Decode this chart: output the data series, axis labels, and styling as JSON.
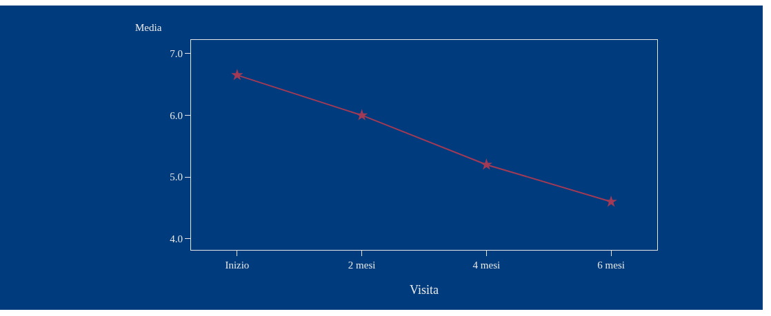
{
  "chart_data": {
    "type": "line",
    "xlabel": "Visita",
    "ylabel": "Media",
    "categories": [
      "Inizio",
      "2 mesi",
      "4 mesi",
      "6 mesi"
    ],
    "series": [
      {
        "color": "#a33a55",
        "values": [
          6.65,
          6.0,
          5.2,
          4.6
        ]
      }
    ],
    "ylim": [
      3.82,
      7.22
    ],
    "yticks": [
      {
        "value": 4,
        "label": "4.0"
      },
      {
        "value": 5,
        "label": "5.0"
      },
      {
        "value": 6,
        "label": "6.0"
      },
      {
        "value": 7,
        "label": "7.0"
      }
    ],
    "grid": false,
    "marker": "star",
    "line_style": "solid"
  }
}
